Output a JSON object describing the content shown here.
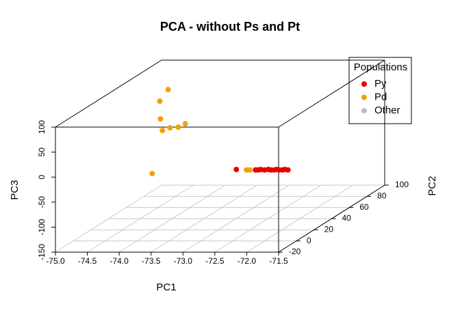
{
  "chart_data": {
    "type": "scatter3d",
    "title": "PCA - without Ps and Pt",
    "xlabel": "PC1",
    "ylabel": "PC2",
    "zlabel": "PC3",
    "xlim": [
      -75,
      -71.5
    ],
    "xticks": [
      {
        "value": -75,
        "label": "-75.0"
      },
      {
        "value": -74.5,
        "label": "-74.5"
      },
      {
        "value": -74,
        "label": "-74.0"
      },
      {
        "value": -73.5,
        "label": "-73.5"
      },
      {
        "value": -73,
        "label": "-73.0"
      },
      {
        "value": -72.5,
        "label": "-72.5"
      },
      {
        "value": -72,
        "label": "-72.0"
      },
      {
        "value": -71.5,
        "label": "-71.5"
      }
    ],
    "ylim": [
      -20,
      100
    ],
    "yticks": [
      -20,
      0,
      20,
      40,
      60,
      80,
      100
    ],
    "zlim": [
      -150,
      100
    ],
    "zticks": [
      -150,
      -100,
      -50,
      0,
      50,
      100
    ],
    "grid": true,
    "legend_title": "Populations",
    "legend_position": "top-right",
    "series": [
      {
        "name": "Py",
        "color": "#e60000",
        "x": [
          -72.44,
          -72.14,
          -72.1,
          -72.06,
          -72.0,
          -71.94,
          -71.9,
          -71.85,
          -71.81,
          -71.77,
          -71.72,
          -71.68,
          -71.63
        ],
        "y": [
          0,
          0,
          0,
          0,
          0,
          0,
          0,
          0,
          0,
          0,
          0,
          0,
          0
        ],
        "z": [
          -7,
          -8,
          -8,
          -7,
          -8,
          -7,
          -8,
          -8,
          -7,
          -8,
          -8,
          -7,
          -8
        ]
      },
      {
        "name": "Pd",
        "color": "#f5a000",
        "x": [
          -74.62,
          -74.75,
          -74.74,
          -74.71,
          -74.59,
          -74.46,
          -74.35,
          -74.87,
          -72.28,
          -72.23
        ],
        "y": [
          80,
          80,
          80,
          80,
          80,
          80,
          80,
          80,
          0,
          0
        ],
        "z": [
          63.5,
          40.3,
          4.8,
          -18.4,
          -13,
          -11.6,
          -4.8,
          -104.5,
          -8,
          -8
        ]
      },
      {
        "name": "Other",
        "color": "#bebebe",
        "x": [],
        "y": [],
        "z": []
      }
    ]
  }
}
